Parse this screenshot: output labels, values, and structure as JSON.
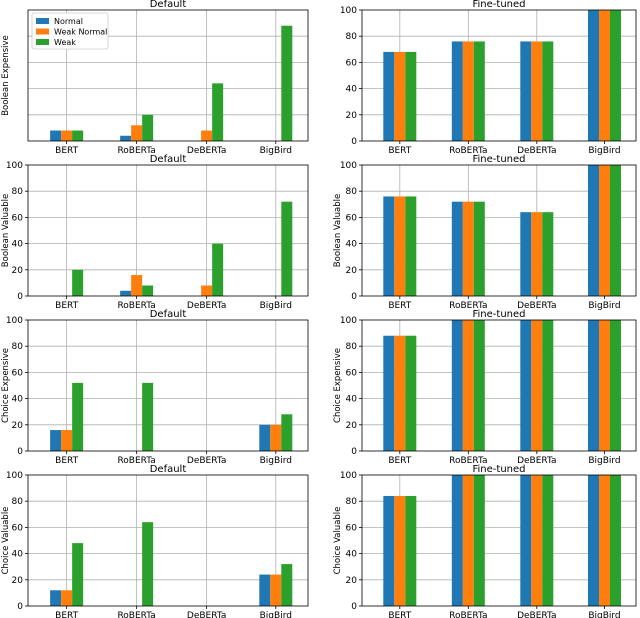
{
  "colors": {
    "Normal": "#1f77b4",
    "Weak Normal": "#ff7f0e",
    "Weak": "#2ca02c"
  },
  "chart_data": [
    {
      "type": "bar",
      "title": "Default",
      "ylabel": "Boolean Expensive",
      "categories": [
        "BERT",
        "RoBERTa",
        "DeBERTa",
        "BigBird"
      ],
      "ylim": [
        0,
        100
      ],
      "yticks": [],
      "grid": true,
      "legend": {
        "placement": "top-left",
        "entries": [
          "Normal",
          "Weak Normal",
          "Weak"
        ]
      },
      "series": [
        {
          "name": "Normal",
          "values": [
            8,
            4,
            0,
            0
          ]
        },
        {
          "name": "Weak Normal",
          "values": [
            8,
            12,
            8,
            0
          ]
        },
        {
          "name": "Weak",
          "values": [
            8,
            20,
            44,
            88
          ]
        }
      ]
    },
    {
      "type": "bar",
      "title": "Fine-tuned",
      "ylabel": "",
      "categories": [
        "BERT",
        "RoBERTa",
        "DeBERTa",
        "BigBird"
      ],
      "ylim": [
        0,
        100
      ],
      "yticks": [
        0,
        20,
        40,
        60,
        80,
        100
      ],
      "grid": true,
      "series": [
        {
          "name": "Normal",
          "values": [
            68,
            76,
            76,
            100
          ]
        },
        {
          "name": "Weak Normal",
          "values": [
            68,
            76,
            76,
            100
          ]
        },
        {
          "name": "Weak",
          "values": [
            68,
            76,
            76,
            100
          ]
        }
      ]
    },
    {
      "type": "bar",
      "title": "Default",
      "ylabel": "Boolean Valuable",
      "categories": [
        "BERT",
        "RoBERTa",
        "DeBERTa",
        "BigBird"
      ],
      "ylim": [
        0,
        100
      ],
      "yticks": [
        0,
        20,
        40,
        60,
        80,
        100
      ],
      "grid": true,
      "series": [
        {
          "name": "Normal",
          "values": [
            0,
            4,
            0,
            0
          ]
        },
        {
          "name": "Weak Normal",
          "values": [
            0,
            16,
            8,
            0
          ]
        },
        {
          "name": "Weak",
          "values": [
            20,
            8,
            40,
            72
          ]
        }
      ]
    },
    {
      "type": "bar",
      "title": "Fine-tuned",
      "ylabel": "Boolean Valuable",
      "categories": [
        "BERT",
        "RoBERTa",
        "DeBERTa",
        "BigBird"
      ],
      "ylim": [
        0,
        100
      ],
      "yticks": [
        0,
        20,
        40,
        60,
        80,
        100
      ],
      "grid": true,
      "series": [
        {
          "name": "Normal",
          "values": [
            76,
            72,
            64,
            100
          ]
        },
        {
          "name": "Weak Normal",
          "values": [
            76,
            72,
            64,
            100
          ]
        },
        {
          "name": "Weak",
          "values": [
            76,
            72,
            64,
            100
          ]
        }
      ]
    },
    {
      "type": "bar",
      "title": "Default",
      "ylabel": "Choice Expensive",
      "categories": [
        "BERT",
        "RoBERTa",
        "DeBERTa",
        "BigBird"
      ],
      "ylim": [
        0,
        100
      ],
      "yticks": [
        0,
        20,
        40,
        60,
        80,
        100
      ],
      "grid": true,
      "series": [
        {
          "name": "Normal",
          "values": [
            16,
            0,
            0,
            20
          ]
        },
        {
          "name": "Weak Normal",
          "values": [
            16,
            0,
            0,
            20
          ]
        },
        {
          "name": "Weak",
          "values": [
            52,
            52,
            0,
            28
          ]
        }
      ]
    },
    {
      "type": "bar",
      "title": "Fine-tuned",
      "ylabel": "Choice Expensive",
      "categories": [
        "BERT",
        "RoBERTa",
        "DeBERTa",
        "BigBird"
      ],
      "ylim": [
        0,
        100
      ],
      "yticks": [
        0,
        20,
        40,
        60,
        80,
        100
      ],
      "grid": true,
      "series": [
        {
          "name": "Normal",
          "values": [
            88,
            100,
            100,
            100
          ]
        },
        {
          "name": "Weak Normal",
          "values": [
            88,
            100,
            100,
            100
          ]
        },
        {
          "name": "Weak",
          "values": [
            88,
            100,
            100,
            100
          ]
        }
      ]
    },
    {
      "type": "bar",
      "title": "Default",
      "ylabel": "Choice Valuable",
      "categories": [
        "BERT",
        "RoBERTa",
        "DeBERTa",
        "BigBird"
      ],
      "ylim": [
        0,
        100
      ],
      "yticks": [
        0,
        20,
        40,
        60,
        80,
        100
      ],
      "grid": true,
      "series": [
        {
          "name": "Normal",
          "values": [
            12,
            0,
            0,
            24
          ]
        },
        {
          "name": "Weak Normal",
          "values": [
            12,
            0,
            0,
            24
          ]
        },
        {
          "name": "Weak",
          "values": [
            48,
            64,
            0,
            32
          ]
        }
      ]
    },
    {
      "type": "bar",
      "title": "Fine-tuned",
      "ylabel": "Choice Valuable",
      "categories": [
        "BERT",
        "RoBERTa",
        "DeBERTa",
        "BigBird"
      ],
      "ylim": [
        0,
        100
      ],
      "yticks": [
        0,
        20,
        40,
        60,
        80,
        100
      ],
      "grid": true,
      "series": [
        {
          "name": "Normal",
          "values": [
            84,
            100,
            100,
            100
          ]
        },
        {
          "name": "Weak Normal",
          "values": [
            84,
            100,
            100,
            100
          ]
        },
        {
          "name": "Weak",
          "values": [
            84,
            100,
            100,
            100
          ]
        }
      ]
    }
  ]
}
